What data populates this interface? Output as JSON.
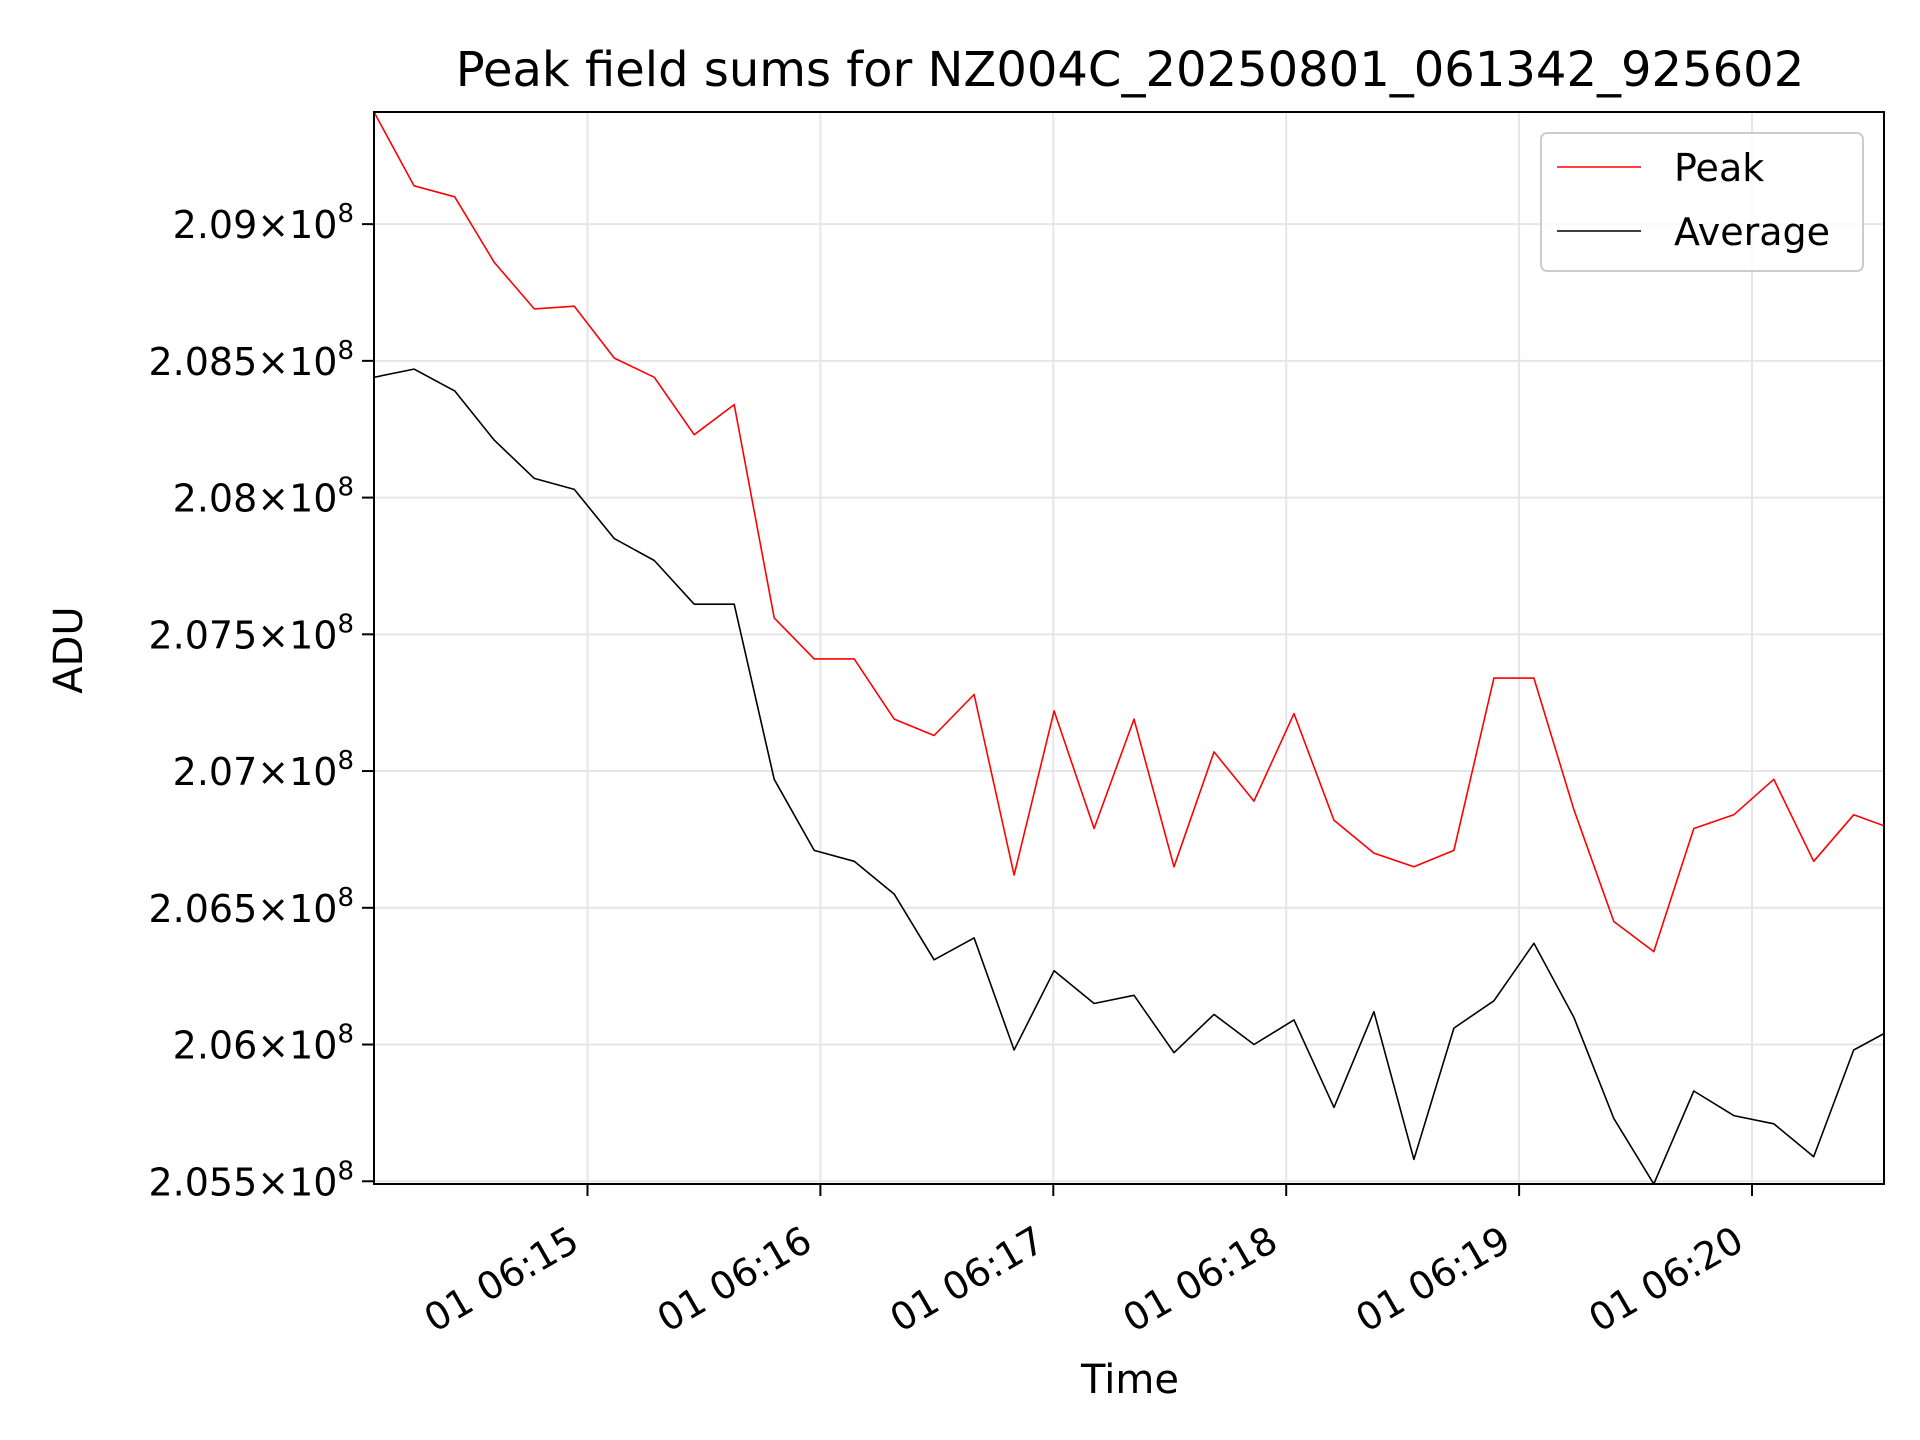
{
  "chart_data": {
    "type": "line",
    "title": "Peak field sums for NZ004C_20250801_061342_925602",
    "xlabel": "Time",
    "ylabel": "ADU",
    "grid": true,
    "legend_position": "top-right",
    "xlim": [
      "01 06:14:05.0",
      "01 06:20:34.0"
    ],
    "ylim": [
      205490000,
      209410000
    ],
    "x_ticks": [
      "01 06:15",
      "01 06:16",
      "01 06:17",
      "01 06:18",
      "01 06:19",
      "01 06:20"
    ],
    "y_ticks": [
      {
        "value": 205500000,
        "mantissa": "2.055",
        "exponent": "8"
      },
      {
        "value": 206000000,
        "mantissa": "2.06",
        "exponent": "8"
      },
      {
        "value": 206500000,
        "mantissa": "2.065",
        "exponent": "8"
      },
      {
        "value": 207000000,
        "mantissa": "2.07",
        "exponent": "8"
      },
      {
        "value": 207500000,
        "mantissa": "2.075",
        "exponent": "8"
      },
      {
        "value": 208000000,
        "mantissa": "2.08",
        "exponent": "8"
      },
      {
        "value": 208500000,
        "mantissa": "2.085",
        "exponent": "8"
      },
      {
        "value": 209000000,
        "mantissa": "2.09",
        "exponent": "8"
      }
    ],
    "x": [
      "01 06:14:05.0",
      "01 06:14:15.3",
      "01 06:14:25.8",
      "01 06:14:36.0",
      "01 06:14:46.3",
      "01 06:14:56.6",
      "01 06:15:06.9",
      "01 06:15:17.2",
      "01 06:15:27.5",
      "01 06:15:37.8",
      "01 06:15:48.1",
      "01 06:15:58.4",
      "01 06:16:08.7",
      "01 06:16:19.0",
      "01 06:16:29.3",
      "01 06:16:39.6",
      "01 06:16:49.9",
      "01 06:17:00.2",
      "01 06:17:10.5",
      "01 06:17:20.8",
      "01 06:17:31.1",
      "01 06:17:41.4",
      "01 06:17:51.7",
      "01 06:18:02.0",
      "01 06:18:12.3",
      "01 06:18:22.6",
      "01 06:18:32.9",
      "01 06:18:43.2",
      "01 06:18:53.5",
      "01 06:19:03.8",
      "01 06:19:14.1",
      "01 06:19:24.4",
      "01 06:19:34.7",
      "01 06:19:45.0",
      "01 06:19:55.3",
      "01 06:20:05.6",
      "01 06:20:15.9",
      "01 06:20:26.2",
      "01 06:20:34.0"
    ],
    "series": [
      {
        "name": "Peak",
        "color": "#ff0000",
        "values": [
          209410000,
          209140000,
          209100000,
          208860000,
          208690000,
          208700000,
          208510000,
          208440000,
          208230000,
          208340000,
          207560000,
          207410000,
          207410000,
          207190000,
          207130000,
          207280000,
          206620000,
          207220000,
          206790000,
          207190000,
          206650000,
          207070000,
          206890000,
          207210000,
          206820000,
          206700000,
          206650000,
          206710000,
          207340000,
          207340000,
          206860000,
          206450000,
          206340000,
          206790000,
          206840000,
          206970000,
          206670000,
          206840000,
          206800000
        ]
      },
      {
        "name": "Average",
        "color": "#000000",
        "values": [
          208440000,
          208470000,
          208390000,
          208210000,
          208070000,
          208030000,
          207850000,
          207770000,
          207610000,
          207610000,
          206970000,
          206710000,
          206670000,
          206550000,
          206310000,
          206390000,
          205980000,
          206270000,
          206150000,
          206180000,
          205970000,
          206110000,
          206000000,
          206090000,
          205770000,
          206120000,
          205580000,
          206060000,
          206160000,
          206370000,
          206100000,
          205730000,
          205490000,
          205830000,
          205740000,
          205710000,
          205590000,
          205980000,
          206040000
        ]
      }
    ]
  }
}
